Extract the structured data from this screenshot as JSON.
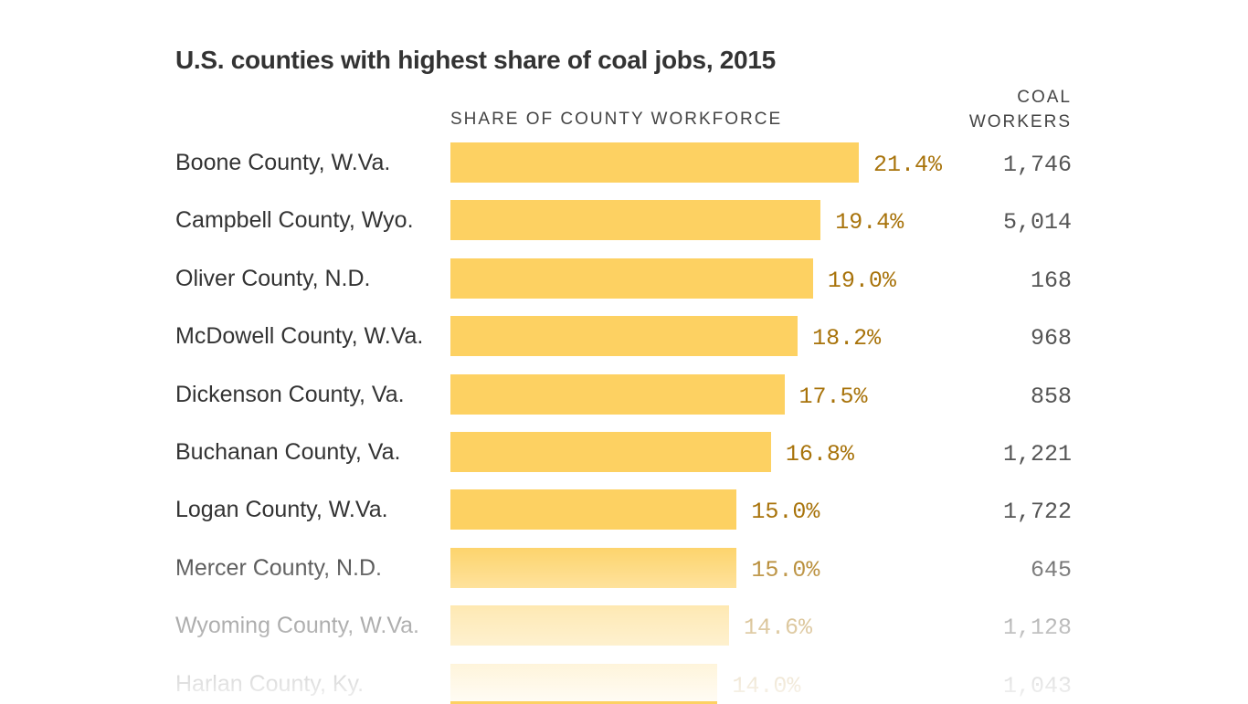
{
  "chart_data": {
    "type": "bar",
    "orientation": "horizontal",
    "title": "U.S. counties with highest share of coal jobs, 2015",
    "xlabel": "SHARE OF COUNTY WORKFORCE",
    "extra_column_label": "COAL WORKERS",
    "extra_column_label_lines": [
      "COAL",
      "WORKERS"
    ],
    "categories": [
      "Boone County, W.Va.",
      "Campbell County, Wyo.",
      "Oliver County, N.D.",
      "McDowell County, W.Va.",
      "Dickenson County, Va.",
      "Buchanan County, Va.",
      "Logan County, W.Va.",
      "Mercer County, N.D.",
      "Wyoming County, W.Va.",
      "Harlan County, Ky."
    ],
    "values": [
      21.4,
      19.4,
      19.0,
      18.2,
      17.5,
      16.8,
      15.0,
      15.0,
      14.6,
      14.0
    ],
    "value_labels": [
      "21.4%",
      "19.4%",
      "19.0%",
      "18.2%",
      "17.5%",
      "16.8%",
      "15.0%",
      "15.0%",
      "14.6%",
      "14.0%"
    ],
    "coal_workers": [
      "1,746",
      "5,014",
      "168",
      "968",
      "858",
      "1,221",
      "1,722",
      "645",
      "1,128",
      "1,043"
    ],
    "xlim": [
      0,
      21.4
    ],
    "grid": false,
    "legend": "none",
    "colors": {
      "bar": "#fdd162",
      "value_label": "#a8730b",
      "workers": "#555555",
      "labels": "#333333"
    }
  }
}
